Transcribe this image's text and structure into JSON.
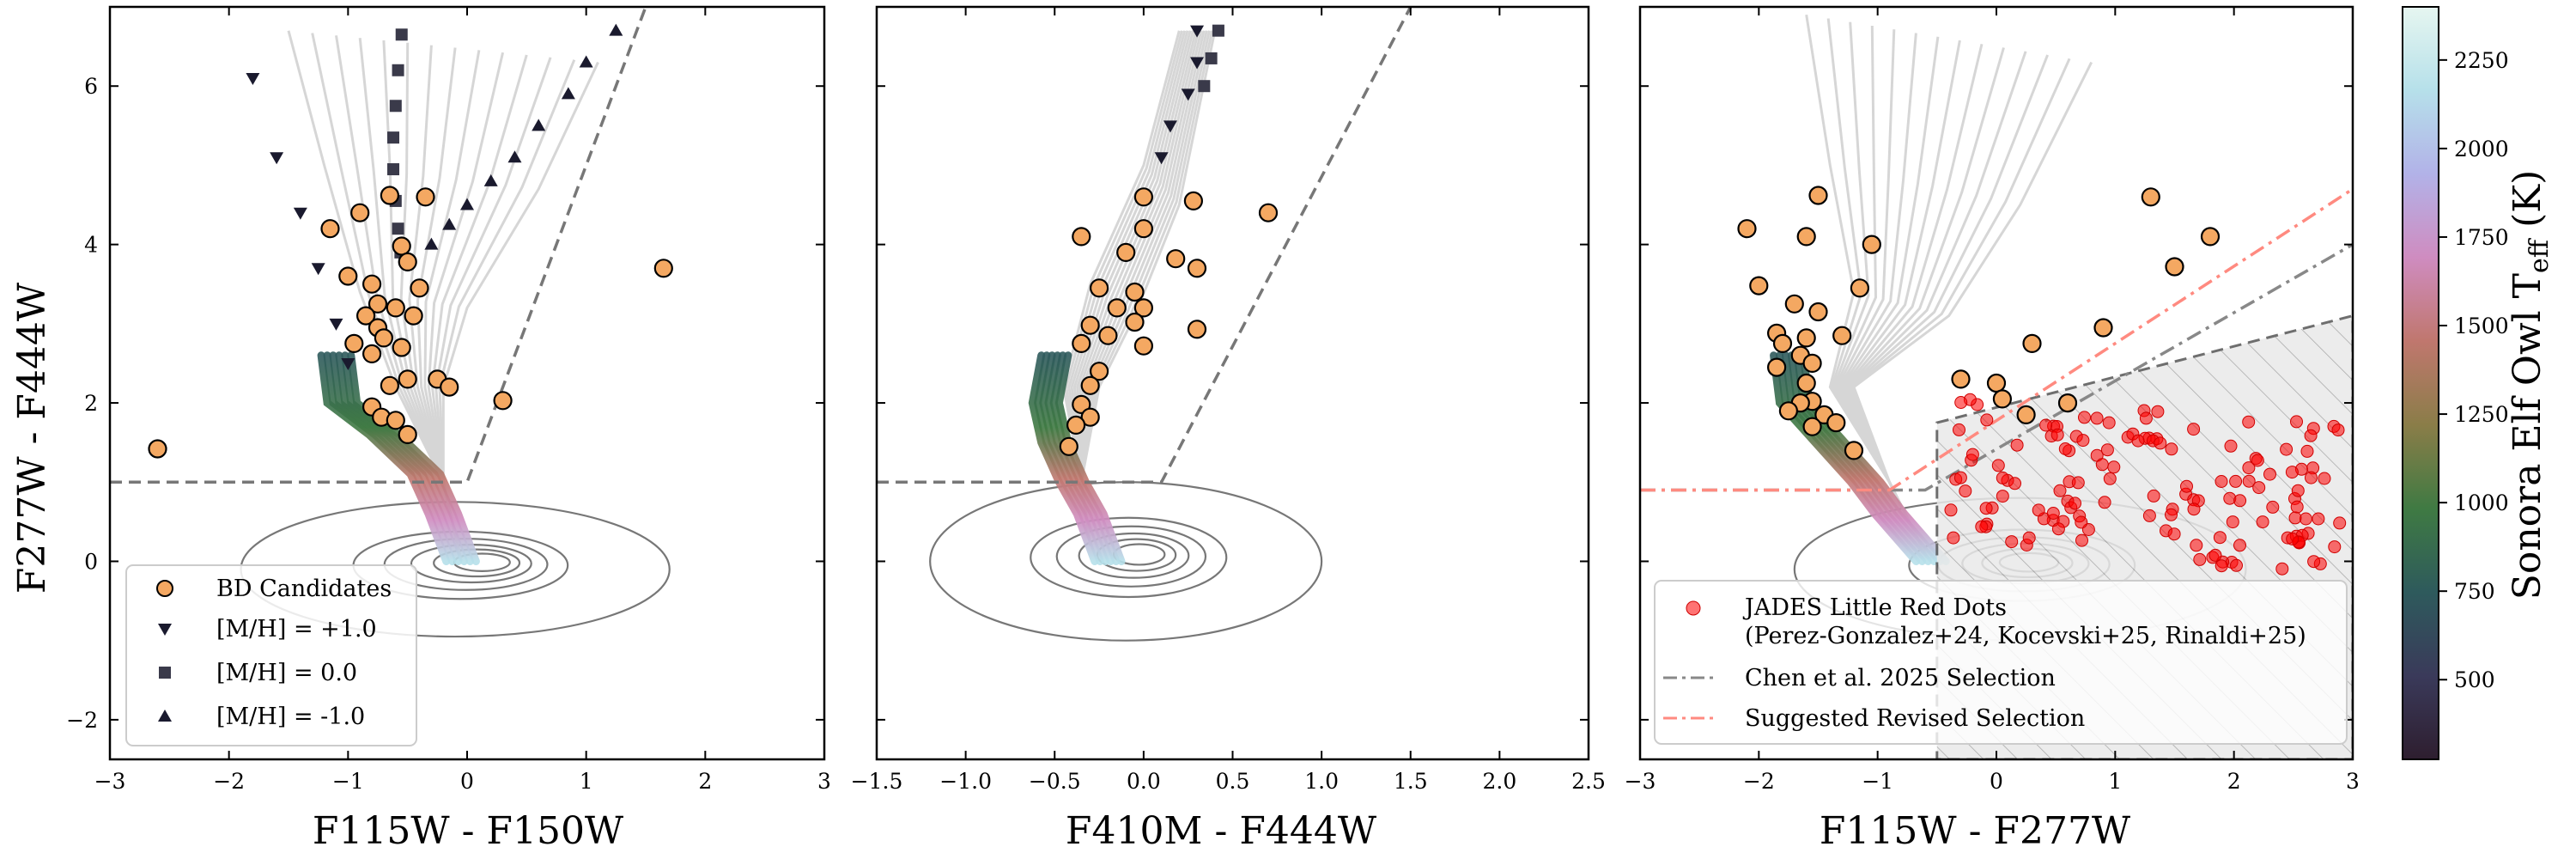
{
  "chart_data": [
    {
      "type": "scatter",
      "panel": "left",
      "xlabel": "F115W - F150W",
      "ylabel": "F277W - F444W",
      "xlim": [
        -3,
        3
      ],
      "ylim": [
        -2.5,
        7
      ],
      "xticks": [
        "−3",
        "−2",
        "−1",
        "0",
        "1",
        "2",
        "3"
      ],
      "xtick_values": [
        -3,
        -2,
        -1,
        0,
        1,
        2,
        3
      ],
      "yticks": [
        "−2",
        "0",
        "2",
        "4",
        "6"
      ],
      "ytick_values": [
        -2,
        0,
        2,
        4,
        6
      ],
      "selection_line": [
        [
          -3,
          1.0
        ],
        [
          0.0,
          1.0
        ],
        [
          1.5,
          7.0
        ]
      ],
      "bd_candidates": [
        [
          -2.6,
          1.42
        ],
        [
          -1.15,
          4.2
        ],
        [
          -0.9,
          4.4
        ],
        [
          -0.65,
          4.62
        ],
        [
          -0.35,
          4.6
        ],
        [
          -1.0,
          3.6
        ],
        [
          -0.8,
          3.5
        ],
        [
          -0.55,
          3.98
        ],
        [
          -0.5,
          3.78
        ],
        [
          -0.75,
          3.25
        ],
        [
          -0.85,
          3.1
        ],
        [
          -0.6,
          3.2
        ],
        [
          -0.4,
          3.45
        ],
        [
          -0.45,
          3.1
        ],
        [
          -0.75,
          2.95
        ],
        [
          -0.7,
          2.82
        ],
        [
          -0.95,
          2.75
        ],
        [
          -0.8,
          2.62
        ],
        [
          -0.55,
          2.7
        ],
        [
          -0.5,
          2.3
        ],
        [
          -0.25,
          2.3
        ],
        [
          -0.15,
          2.2
        ],
        [
          -0.65,
          2.22
        ],
        [
          -0.8,
          1.95
        ],
        [
          -0.72,
          1.82
        ],
        [
          -0.6,
          1.78
        ],
        [
          -0.5,
          1.6
        ],
        [
          0.3,
          2.03
        ],
        [
          1.65,
          3.7
        ]
      ],
      "legend": [
        "BD Candidates",
        "[M/H] = +1.0",
        "[M/H] = 0.0",
        "[M/H] = -1.0"
      ],
      "track_mp": [
        [
          -1.8,
          6.1
        ],
        [
          -1.6,
          5.1
        ],
        [
          -1.4,
          4.4
        ],
        [
          -1.25,
          3.7
        ],
        [
          -1.1,
          3.0
        ],
        [
          -1.0,
          2.5
        ]
      ],
      "track_solar": [
        [
          -0.55,
          6.65
        ],
        [
          -0.58,
          6.2
        ],
        [
          -0.6,
          5.75
        ],
        [
          -0.62,
          5.35
        ],
        [
          -0.62,
          4.95
        ],
        [
          -0.6,
          4.55
        ],
        [
          -0.58,
          4.2
        ],
        [
          -0.56,
          3.9
        ]
      ],
      "track_mm": [
        [
          1.25,
          6.7
        ],
        [
          1.0,
          6.3
        ],
        [
          0.85,
          5.9
        ],
        [
          0.6,
          5.5
        ],
        [
          0.4,
          5.1
        ],
        [
          0.2,
          4.8
        ],
        [
          0.0,
          4.5
        ],
        [
          -0.15,
          4.25
        ],
        [
          -0.3,
          4.0
        ]
      ]
    },
    {
      "type": "scatter",
      "panel": "middle",
      "xlabel": "F410M - F444W",
      "xlim": [
        -1.5,
        2.5
      ],
      "ylim": [
        -2.5,
        7
      ],
      "xticks": [
        "−1.5",
        "−1.0",
        "−0.5",
        "0.0",
        "0.5",
        "1.0",
        "1.5",
        "2.0",
        "2.5"
      ],
      "xtick_values": [
        -1.5,
        -1.0,
        -0.5,
        0.0,
        0.5,
        1.0,
        1.5,
        2.0,
        2.5
      ],
      "selection_line": [
        [
          -1.5,
          1.0
        ],
        [
          0.1,
          1.0
        ],
        [
          1.5,
          7.0
        ]
      ],
      "bd_candidates": [
        [
          -0.35,
          4.1
        ],
        [
          0.0,
          4.6
        ],
        [
          0.28,
          4.55
        ],
        [
          0.7,
          4.4
        ],
        [
          0.0,
          4.2
        ],
        [
          -0.1,
          3.9
        ],
        [
          0.18,
          3.82
        ],
        [
          0.3,
          3.7
        ],
        [
          -0.25,
          3.45
        ],
        [
          -0.05,
          3.4
        ],
        [
          -0.15,
          3.2
        ],
        [
          0.0,
          3.2
        ],
        [
          -0.05,
          3.02
        ],
        [
          -0.3,
          2.98
        ],
        [
          -0.2,
          2.85
        ],
        [
          0.3,
          2.93
        ],
        [
          -0.35,
          2.75
        ],
        [
          0.0,
          2.72
        ],
        [
          -0.25,
          2.4
        ],
        [
          -0.3,
          2.22
        ],
        [
          -0.35,
          1.98
        ],
        [
          -0.3,
          1.82
        ],
        [
          -0.38,
          1.72
        ],
        [
          -0.42,
          1.45
        ]
      ],
      "track_mp": [
        [
          0.3,
          6.7
        ],
        [
          0.3,
          6.3
        ],
        [
          0.25,
          5.9
        ],
        [
          0.15,
          5.5
        ],
        [
          0.1,
          5.1
        ]
      ],
      "track_solar": [
        [
          0.42,
          6.7
        ],
        [
          0.38,
          6.35
        ],
        [
          0.34,
          6.0
        ]
      ]
    },
    {
      "type": "scatter",
      "panel": "right",
      "xlabel": "F115W - F277W",
      "xlim": [
        -3,
        3
      ],
      "ylim": [
        -2.5,
        7
      ],
      "xticks": [
        "−3",
        "−2",
        "−1",
        "0",
        "1",
        "2",
        "3"
      ],
      "xtick_values": [
        -3,
        -2,
        -1,
        0,
        1,
        2,
        3
      ],
      "chen_selection": [
        [
          -3,
          0.9
        ],
        [
          -0.6,
          0.9
        ],
        [
          3,
          4.0
        ]
      ],
      "revised_selection": [
        [
          -3,
          0.9
        ],
        [
          -0.9,
          0.9
        ],
        [
          3,
          4.7
        ]
      ],
      "hatched_region": [
        [
          -0.5,
          1.75
        ],
        [
          3,
          3.1
        ],
        [
          3,
          -2.5
        ],
        [
          -0.5,
          -2.5
        ]
      ],
      "bd_candidates": [
        [
          -2.1,
          4.2
        ],
        [
          -1.5,
          4.62
        ],
        [
          -1.6,
          4.1
        ],
        [
          -1.05,
          4.0
        ],
        [
          -2.0,
          3.48
        ],
        [
          -1.7,
          3.25
        ],
        [
          -1.5,
          3.15
        ],
        [
          -1.15,
          3.45
        ],
        [
          -1.85,
          2.88
        ],
        [
          -1.8,
          2.75
        ],
        [
          -1.6,
          2.82
        ],
        [
          -1.65,
          2.6
        ],
        [
          -1.3,
          2.85
        ],
        [
          -1.85,
          2.45
        ],
        [
          -1.55,
          2.5
        ],
        [
          -1.6,
          2.25
        ],
        [
          -1.55,
          2.02
        ],
        [
          -1.65,
          2.0
        ],
        [
          -1.75,
          1.9
        ],
        [
          -1.45,
          1.85
        ],
        [
          -1.35,
          1.75
        ],
        [
          -1.55,
          1.7
        ],
        [
          -1.2,
          1.4
        ],
        [
          -0.3,
          2.3
        ],
        [
          0.3,
          2.75
        ],
        [
          0.25,
          1.85
        ],
        [
          0.0,
          2.25
        ],
        [
          0.05,
          2.05
        ],
        [
          0.6,
          2.0
        ],
        [
          1.3,
          4.6
        ],
        [
          1.5,
          3.72
        ],
        [
          1.8,
          4.1
        ],
        [
          0.9,
          2.95
        ]
      ],
      "lrd_color": "#ff0000",
      "legend": [
        "JADES Little Red Dots",
        "(Perez-Gonzalez+24, Kocevski+25, Rinaldi+25)",
        "Chen et al. 2025 Selection",
        "Suggested Revised Selection"
      ]
    }
  ],
  "colorbar": {
    "label": "Sonora Elf Owl T_eff (K)",
    "label_main": "Sonora Elf Owl T",
    "label_sub": "eff",
    "label_tail": " (K)",
    "ticks": [
      "500",
      "750",
      "1000",
      "1250",
      "1500",
      "1750",
      "2000",
      "2250"
    ],
    "tick_values": [
      500,
      750,
      1000,
      1250,
      1500,
      1750,
      2000,
      2250
    ],
    "range": [
      275,
      2400
    ],
    "stops": [
      "#2e1e2f",
      "#3a3a5a",
      "#2e5a5c",
      "#3f7a43",
      "#8a7d48",
      "#c0776e",
      "#cf8cc0",
      "#b2b2e8",
      "#b6e0ea",
      "#e6f6f0"
    ]
  },
  "colors": {
    "bd_face": "#f4a862",
    "bd_edge": "#000000",
    "marker": "#1a1a2e",
    "selection": "#777777",
    "chen": "#888888",
    "revised": "#ff8a80",
    "contour": "#777777",
    "track": "#d6d6d6"
  }
}
